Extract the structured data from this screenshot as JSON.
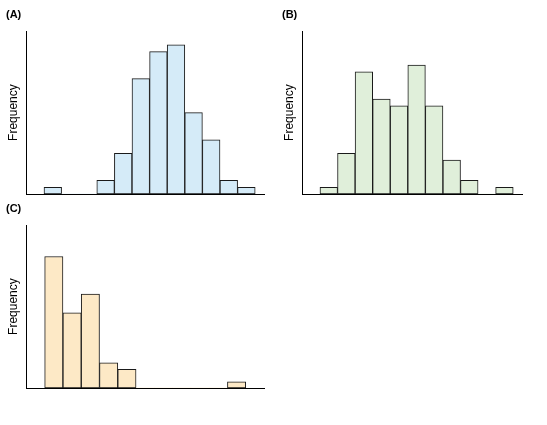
{
  "chart_data": [
    {
      "type": "histogram",
      "title": "(A)",
      "y_label": "Frequency",
      "bins": [
        0,
        1,
        2,
        3,
        4,
        5,
        6,
        7,
        8,
        9,
        10,
        11,
        12
      ],
      "values": [
        1,
        0,
        0,
        2,
        6,
        17,
        21,
        22,
        12,
        8,
        2,
        1
      ],
      "color": "#d5ebf8",
      "xlim": [
        -1,
        12.5
      ],
      "ylim": [
        0,
        24
      ],
      "grid": false,
      "tick_labels": false
    },
    {
      "type": "histogram",
      "title": "(B)",
      "y_label": "Frequency",
      "bins": [
        0,
        1,
        2,
        3,
        4,
        5,
        6,
        7,
        8,
        9,
        10,
        11
      ],
      "values": [
        1,
        6,
        18,
        14,
        13,
        19,
        13,
        5,
        2,
        0,
        1
      ],
      "color": "#e0efda",
      "xlim": [
        -1,
        11.5
      ],
      "ylim": [
        0,
        24
      ],
      "grid": false,
      "tick_labels": false
    },
    {
      "type": "histogram",
      "title": "(C)",
      "y_label": "Frequency",
      "bins": [
        0,
        1,
        2,
        3,
        4,
        5,
        6,
        7,
        8,
        9,
        10,
        11
      ],
      "values": [
        21,
        12,
        15,
        4,
        3,
        0,
        0,
        0,
        0,
        0,
        1
      ],
      "color": "#fde9c6",
      "xlim": [
        -1,
        12
      ],
      "ylim": [
        0,
        26
      ],
      "grid": false,
      "tick_labels": false
    }
  ]
}
